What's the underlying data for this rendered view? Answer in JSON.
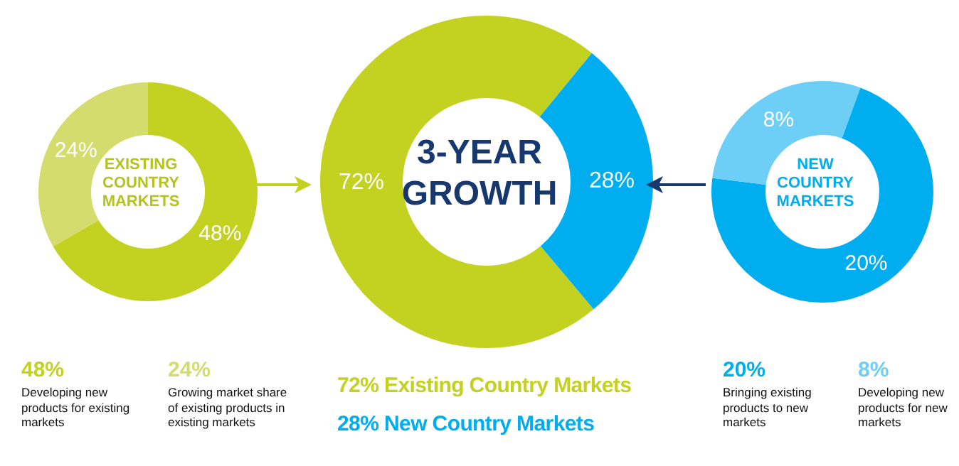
{
  "chart_data": [
    {
      "type": "donut",
      "title": "EXISTING COUNTRY MARKETS",
      "categories": [
        null,
        null
      ],
      "values": [
        48,
        24
      ],
      "colors": [
        "#c3d121",
        "#d3dc6c"
      ],
      "value_labels": [
        "48%",
        "24%"
      ],
      "annotations": [
        "48%",
        "Developing new products for existing markets",
        "24%",
        "Growing market share of existing products in existing markets"
      ]
    },
    {
      "type": "donut",
      "title": "3-YEAR GROWTH",
      "categories": [
        null,
        null
      ],
      "values": [
        72,
        28
      ],
      "colors": [
        "#c3d121",
        "#00aeef"
      ],
      "value_labels": [
        "72%",
        "28%"
      ],
      "annotations": [
        "72% Existing Country Markets",
        "28% New Country Markets"
      ]
    },
    {
      "type": "donut",
      "title": "NEW COUNTRY MARKETS",
      "categories": [
        null,
        null
      ],
      "values": [
        20,
        8
      ],
      "colors": [
        "#00aeef",
        "#6dcff6"
      ],
      "value_labels": [
        "20%",
        "8%"
      ],
      "annotations": [
        "20%",
        "Bringing existing products to new markets",
        "8%",
        "Developing new products for new markets"
      ]
    }
  ]
}
